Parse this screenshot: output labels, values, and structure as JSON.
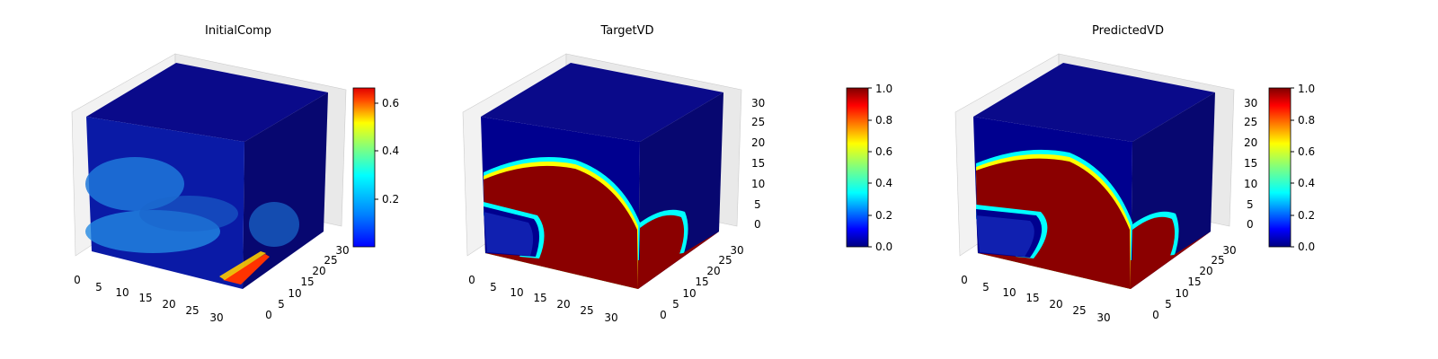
{
  "figure": {
    "background": "#ffffff",
    "colormap": "jet",
    "colormap_stops": [
      "#00007f",
      "#0000ff",
      "#007fff",
      "#00ffff",
      "#7fff7f",
      "#ffff00",
      "#ff7f00",
      "#ff0000",
      "#7f0000"
    ]
  },
  "chart_data": [
    {
      "type": "heatmap",
      "title": "InitialComp",
      "x_ticks": [
        "0",
        "5",
        "10",
        "15",
        "20",
        "25",
        "30"
      ],
      "y_ticks": [
        "0",
        "5",
        "10",
        "15",
        "20",
        "25",
        "30"
      ],
      "z_ticks": [],
      "colorbar": {
        "ticks": [
          "0.2",
          "0.4",
          "0.6"
        ],
        "range": [
          0.02,
          0.66
        ]
      },
      "grid": true
    },
    {
      "type": "heatmap",
      "title": "TargetVD",
      "x_ticks": [
        "0",
        "5",
        "10",
        "15",
        "20",
        "25",
        "30"
      ],
      "y_ticks": [
        "0",
        "5",
        "10",
        "15",
        "20",
        "25",
        "30"
      ],
      "z_ticks": [
        "0",
        "5",
        "10",
        "15",
        "20",
        "25",
        "30"
      ],
      "colorbar": {
        "ticks": [
          "0.0",
          "0.2",
          "0.4",
          "0.6",
          "0.8",
          "1.0"
        ],
        "range": [
          0.0,
          1.0
        ]
      },
      "grid": true
    },
    {
      "type": "heatmap",
      "title": "PredictedVD",
      "x_ticks": [
        "0",
        "5",
        "10",
        "15",
        "20",
        "25",
        "30"
      ],
      "y_ticks": [
        "0",
        "5",
        "10",
        "15",
        "20",
        "25",
        "30"
      ],
      "z_ticks": [
        "0",
        "5",
        "10",
        "15",
        "20",
        "25",
        "30"
      ],
      "colorbar": {
        "ticks": [
          "0.0",
          "0.2",
          "0.4",
          "0.6",
          "0.8",
          "1.0"
        ],
        "range": [
          0.0,
          1.0
        ]
      },
      "grid": true
    }
  ]
}
